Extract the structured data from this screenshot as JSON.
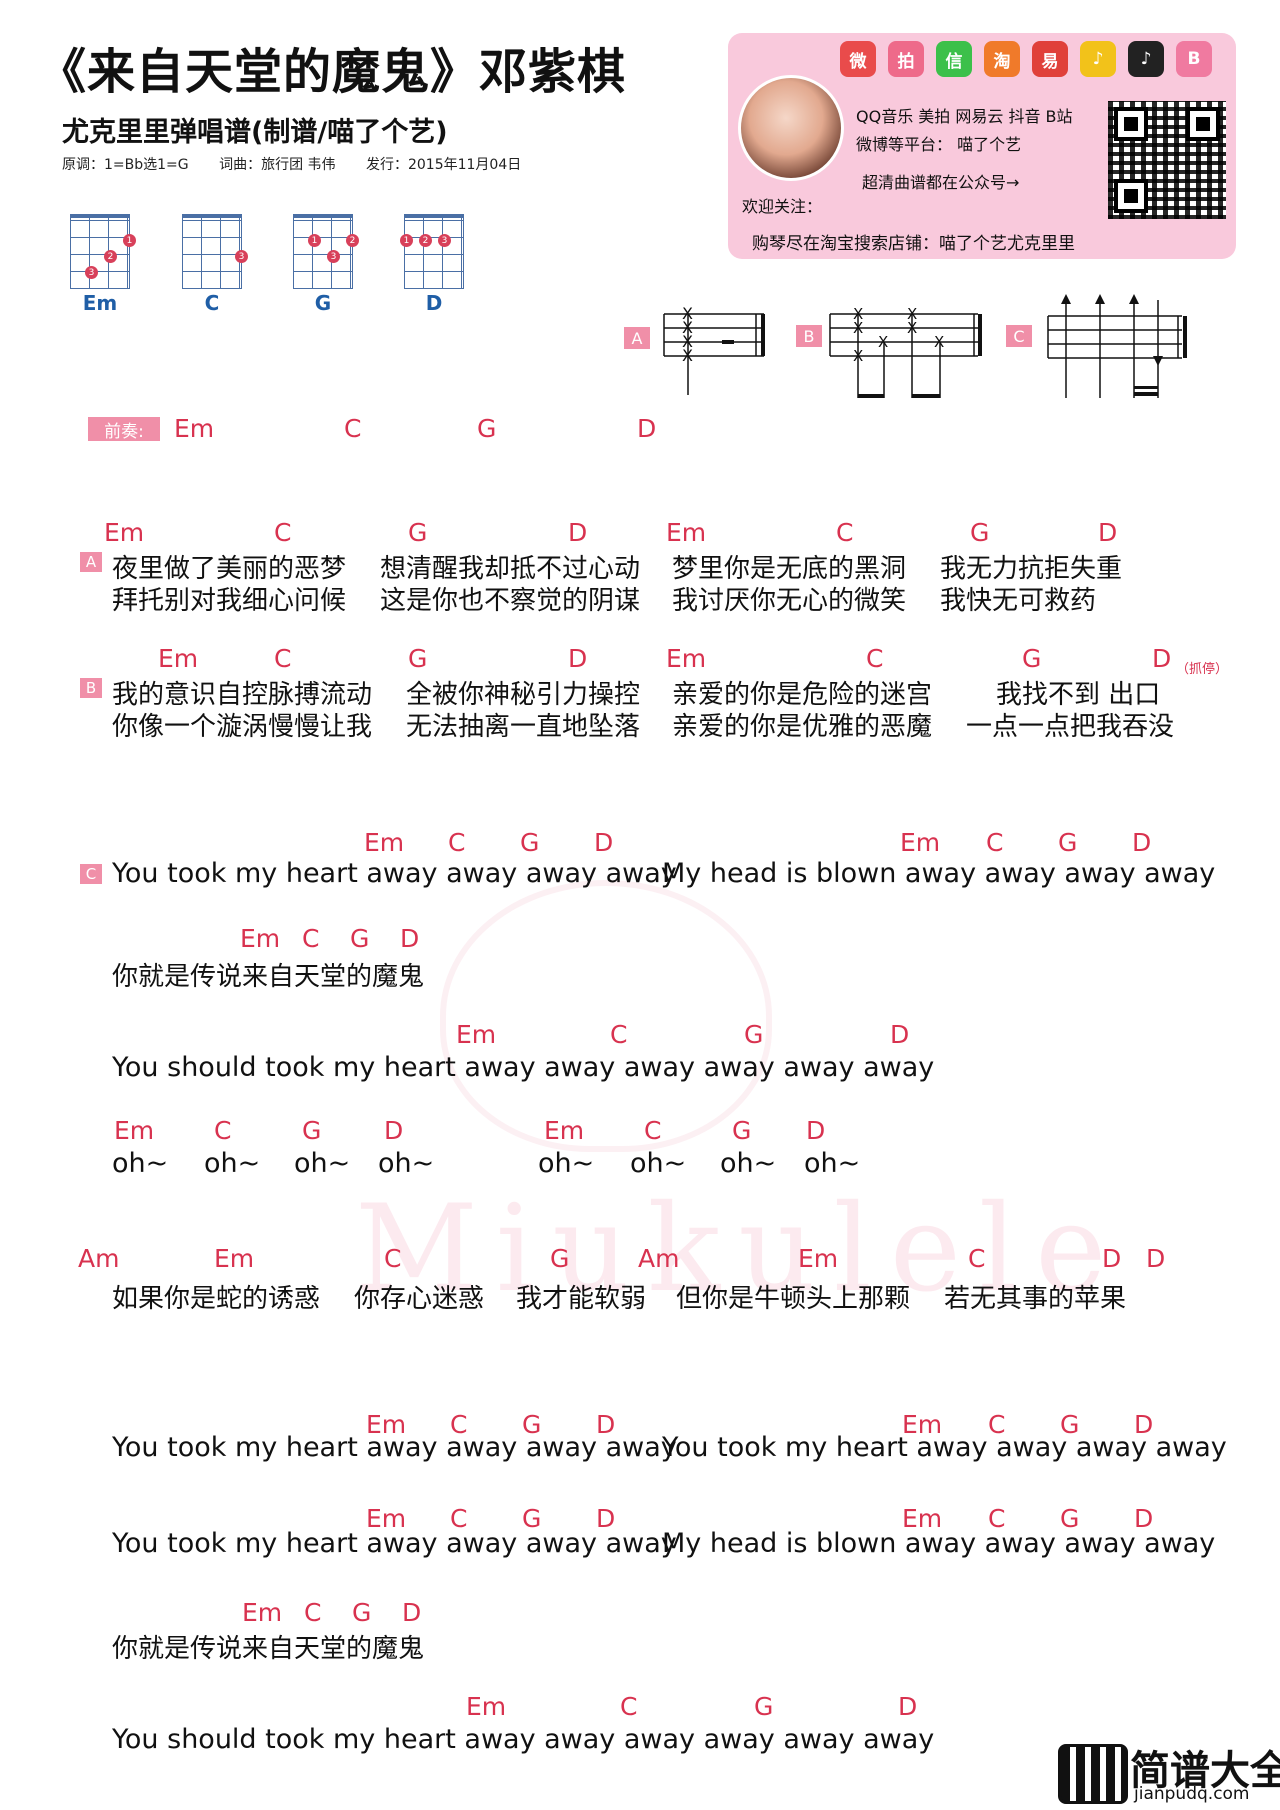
{
  "header": {
    "title": "《来自天堂的魔鬼》邓紫棋",
    "subtitle": "尤克里里弹唱谱(制谱/喵了个艺)",
    "key": "原调：1=Bb选1=G",
    "credits": "词曲：旅行团 韦伟",
    "release": "发行：2015年11月04日"
  },
  "promo": {
    "platforms_line": "QQ音乐 美拍 网易云 抖音 B站",
    "weibo_line": "微博等平台：  喵了个艺",
    "hd_line": "超清曲谱都在公众号→",
    "welcome": "欢迎关注：",
    "shop": "购琴尽在淘宝搜索店铺：喵了个艺尤克里里",
    "social_icons": [
      "weibo-icon",
      "meipai-icon",
      "wechat-icon",
      "taobao-icon",
      "netease-icon",
      "qqmusic-icon",
      "douyin-icon",
      "bilibili-icon"
    ],
    "social_glyphs": [
      "微",
      "拍",
      "信",
      "淘",
      "易",
      "♪",
      "♪",
      "B"
    ],
    "social_colors": [
      "#e94b4b",
      "#ee6a8a",
      "#3cc04a",
      "#f07a2a",
      "#e0403a",
      "#f2c21a",
      "#222222",
      "#f07aa0"
    ]
  },
  "chord_diagrams": [
    "Em",
    "C",
    "G",
    "D"
  ],
  "strum_patterns": [
    "A",
    "B",
    "C"
  ],
  "intro": {
    "label": "前奏:",
    "chords": [
      "Em",
      "C",
      "G",
      "D"
    ]
  },
  "section_a": {
    "label": "A",
    "chords": [
      "Em",
      "C",
      "G",
      "D",
      "Em",
      "C",
      "G",
      "D"
    ],
    "line1": [
      "夜里做了美丽的恶梦",
      "想清醒我却抵不过心动",
      "梦里你是无底的黑洞",
      "我无力抗拒失重"
    ],
    "line2": [
      "拜托别对我细心问候",
      "这是你也不察觉的阴谋",
      "我讨厌你无心的微笑",
      "我快无可救药"
    ]
  },
  "section_b": {
    "label": "B",
    "chords": [
      "Em",
      "C",
      "G",
      "D",
      "Em",
      "C",
      "G",
      "D"
    ],
    "note": "（抓停）",
    "line1": [
      "我的意识自控脉搏流动",
      "全被你神秘引力操控",
      "亲爱的你是危险的迷宫",
      "我找不到   出口"
    ],
    "line2": [
      "你像一个漩涡慢慢让我",
      "无法抽离一直地坠落",
      "亲爱的你是优雅的恶魔",
      "一点一点把我吞没"
    ]
  },
  "section_c": {
    "label": "C",
    "c1_lyric_a": "You took my heart away away away away",
    "c1_lyric_b": "My head is blown away away away away",
    "c1_chords": [
      "Em",
      "C",
      "G",
      "D",
      "Em",
      "C",
      "G",
      "D"
    ],
    "c2_lyric": "你就是传说来自天堂的魔鬼",
    "c2_chords": [
      "Em",
      "C",
      "G",
      "D"
    ],
    "c3_lyric": "You should took my heart away away away away away away",
    "c3_chords": [
      "Em",
      "C",
      "G",
      "D"
    ],
    "oh_chords": [
      "Em",
      "C",
      "G",
      "D",
      "Em",
      "C",
      "G",
      "D"
    ],
    "oh": [
      "oh~",
      "oh~",
      "oh~",
      "oh~",
      "oh~",
      "oh~",
      "oh~",
      "oh~"
    ]
  },
  "bridge": {
    "chords": [
      "Am",
      "Em",
      "C",
      "G",
      "Am",
      "Em",
      "C",
      "D",
      "D"
    ],
    "lyrics": [
      "如果你是蛇的诱惑",
      "你存心迷惑",
      "我才能软弱",
      "但你是牛顿头上那颗",
      "若无其事的苹果"
    ]
  },
  "final": {
    "r1_lyric_a": "You took my heart away away away away",
    "r1_lyric_b": "You took my heart away away away away",
    "r1_chords": [
      "Em",
      "C",
      "G",
      "D",
      "Em",
      "C",
      "G",
      "D"
    ],
    "r2_lyric_a": "You took my heart away away away away",
    "r2_lyric_b": "My head is blown away away away away",
    "r2_chords": [
      "Em",
      "C",
      "G",
      "D",
      "Em",
      "C",
      "G",
      "D"
    ],
    "r3_lyric": "你就是传说来自天堂的魔鬼",
    "r3_chords": [
      "Em",
      "C",
      "G",
      "D"
    ],
    "r4_lyric": "You should took my heart away away away away away away",
    "r4_chords": [
      "Em",
      "C",
      "G",
      "D"
    ]
  },
  "watermark": {
    "text": "Miukulele"
  },
  "logo": {
    "title": "简谱大全",
    "url": "jianpudq.com"
  }
}
